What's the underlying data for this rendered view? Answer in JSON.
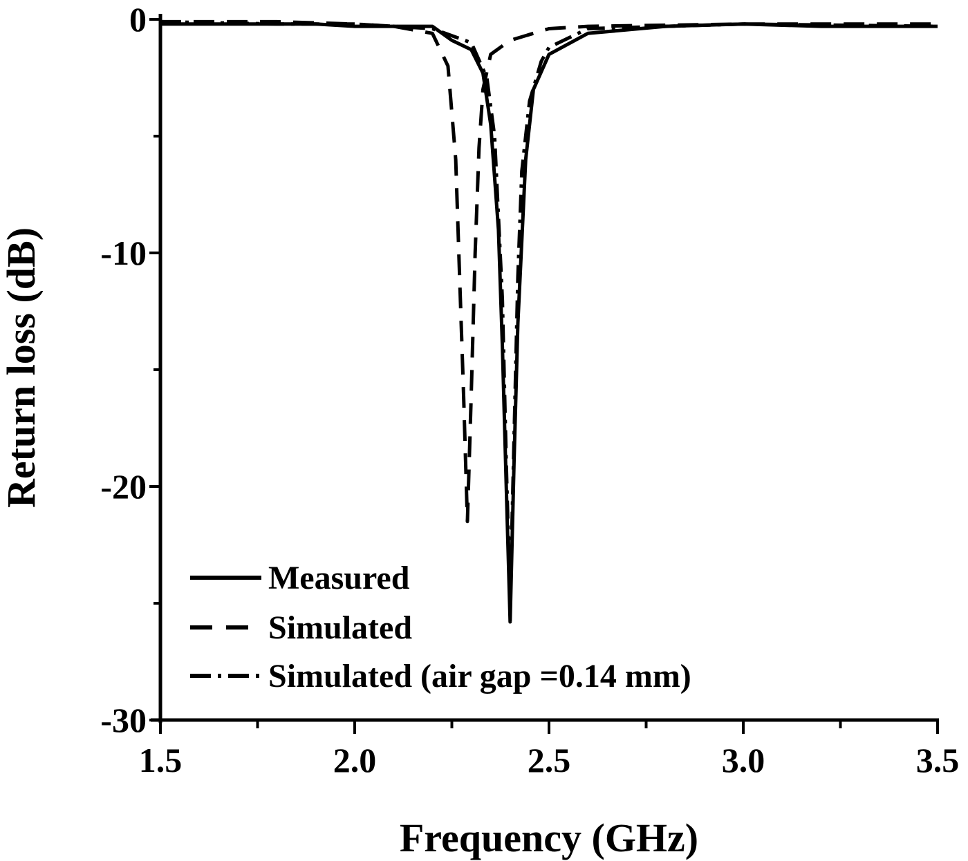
{
  "chart_data": {
    "type": "line",
    "title": "",
    "xlabel": "Frequency (GHz)",
    "ylabel": "Return loss (dB)",
    "xlim": [
      1.5,
      3.5
    ],
    "ylim": [
      -30,
      0
    ],
    "xticks": [
      "1.5",
      "2.0",
      "2.5",
      "3.0",
      "3.5"
    ],
    "yticks": [
      "0",
      "-10",
      "-20",
      "-30"
    ],
    "grid": false,
    "legend_position": "lower left",
    "series": [
      {
        "name": "Measured",
        "style": "solid",
        "x": [
          1.5,
          1.7,
          1.9,
          2.0,
          2.1,
          2.2,
          2.25,
          2.3,
          2.33,
          2.35,
          2.37,
          2.38,
          2.39,
          2.4,
          2.41,
          2.42,
          2.44,
          2.46,
          2.5,
          2.6,
          2.8,
          3.0,
          3.2,
          3.4,
          3.5
        ],
        "y": [
          -0.2,
          -0.2,
          -0.2,
          -0.3,
          -0.3,
          -0.3,
          -0.9,
          -1.3,
          -2.3,
          -4.5,
          -9,
          -14,
          -20,
          -25.8,
          -19,
          -13,
          -6,
          -3,
          -1.5,
          -0.6,
          -0.3,
          -0.2,
          -0.3,
          -0.3,
          -0.3
        ]
      },
      {
        "name": "Simulated",
        "style": "dashed",
        "x": [
          1.5,
          1.8,
          2.0,
          2.1,
          2.2,
          2.24,
          2.26,
          2.27,
          2.28,
          2.29,
          2.3,
          2.31,
          2.32,
          2.33,
          2.35,
          2.4,
          2.5,
          2.6,
          3.0,
          3.5
        ],
        "y": [
          -0.1,
          -0.1,
          -0.2,
          -0.3,
          -0.6,
          -2,
          -6,
          -11,
          -16,
          -21.5,
          -16,
          -10,
          -5.5,
          -3,
          -1.5,
          -0.9,
          -0.4,
          -0.3,
          -0.2,
          -0.2
        ]
      },
      {
        "name": "Simulated (air gap =0.14 mm)",
        "style": "dash-dot",
        "x": [
          1.5,
          1.8,
          2.0,
          2.1,
          2.2,
          2.3,
          2.34,
          2.36,
          2.38,
          2.39,
          2.4,
          2.41,
          2.42,
          2.43,
          2.45,
          2.48,
          2.5,
          2.6,
          3.0,
          3.5
        ],
        "y": [
          -0.1,
          -0.2,
          -0.2,
          -0.3,
          -0.4,
          -1,
          -2.5,
          -5,
          -12,
          -19,
          -25,
          -18,
          -11,
          -6.5,
          -3.5,
          -1.8,
          -1.2,
          -0.4,
          -0.2,
          -0.3
        ]
      }
    ]
  },
  "labels": {
    "xlabel": "Frequency (GHz)",
    "ylabel": "Return loss (dB)",
    "legend": [
      "Measured",
      "Simulated",
      "Simulated (air gap =0.14 mm)"
    ]
  }
}
